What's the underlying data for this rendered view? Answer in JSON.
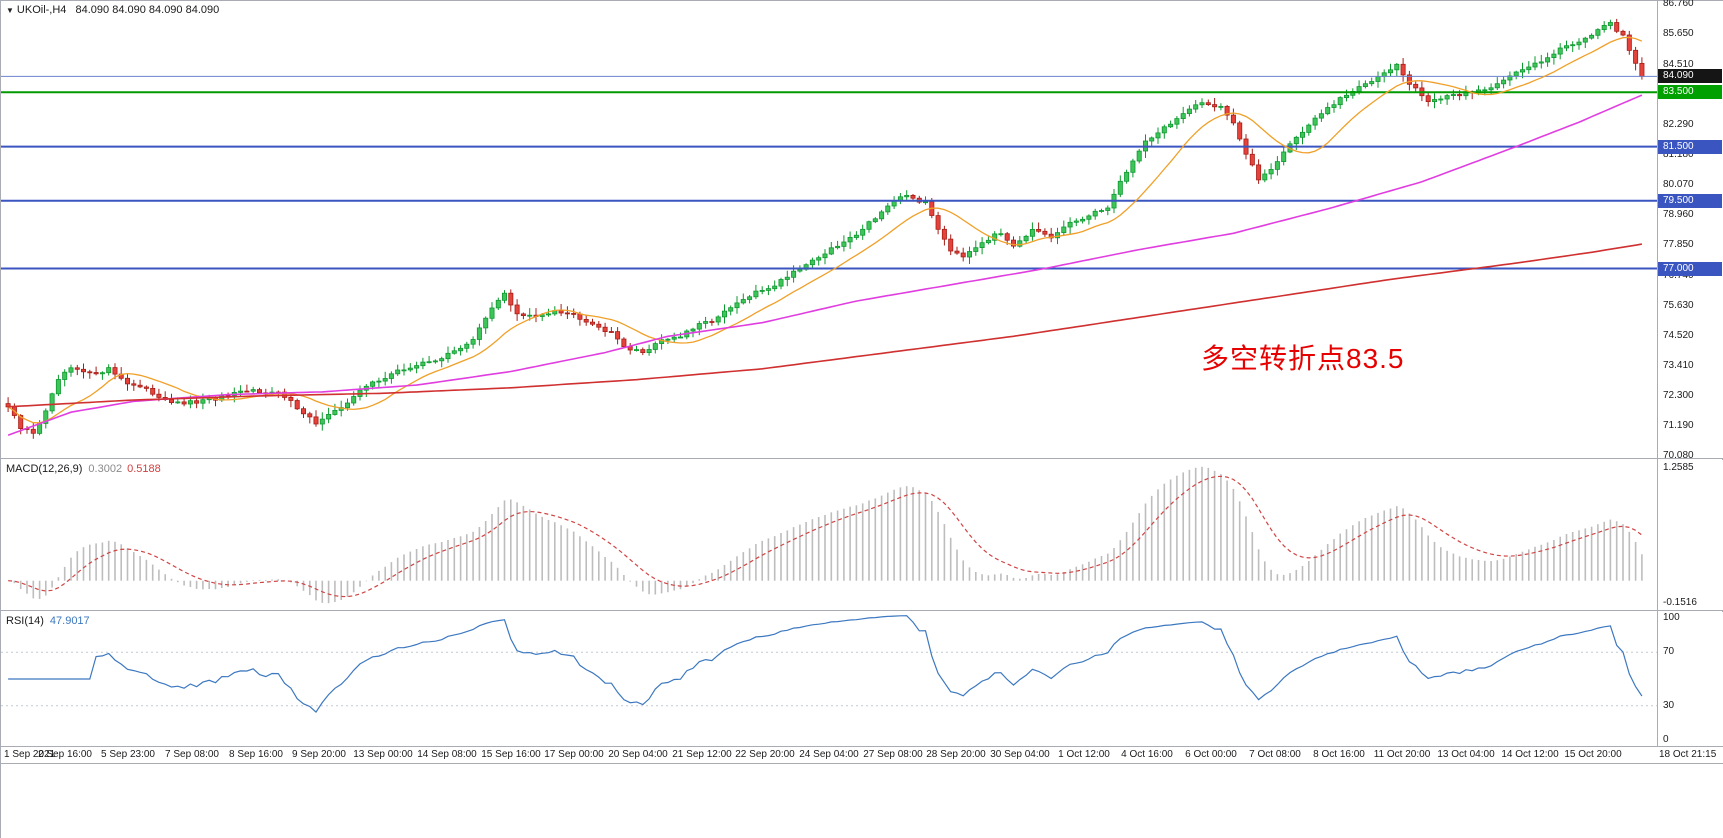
{
  "header": {
    "symbol": "UKOil-,H4",
    "ohlc": "84.090 84.090 84.090 84.090",
    "dropdown_icon": "▼"
  },
  "price_panel": {
    "axis_labels": [
      "86.760",
      "85.650",
      "84.510",
      "82.290",
      "81.180",
      "80.070",
      "78.960",
      "77.850",
      "76.740",
      "75.630",
      "74.520",
      "73.410",
      "72.300",
      "71.190",
      "70.080"
    ],
    "badges": [
      {
        "label": "84.090",
        "bg": "#151515",
        "fg": "#ffffff",
        "role": "bid-price"
      },
      {
        "label": "83.500",
        "bg": "#00a000",
        "fg": "#ffffff",
        "role": "key-level"
      },
      {
        "label": "81.500",
        "bg": "#3a55c0",
        "fg": "#ffffff",
        "role": "support"
      },
      {
        "label": "79.500",
        "bg": "#3a55c0",
        "fg": "#ffffff",
        "role": "support"
      },
      {
        "label": "77.000",
        "bg": "#3a55c0",
        "fg": "#ffffff",
        "role": "support"
      }
    ],
    "hlines": [
      {
        "price": 84.09,
        "color": "#6a83cf",
        "width": 1,
        "role": "bid-line"
      },
      {
        "price": 83.5,
        "color": "#009a00",
        "width": 2,
        "role": "key-level-83.5"
      },
      {
        "price": 81.5,
        "color": "#3a55c0",
        "width": 2,
        "role": "support-81.5"
      },
      {
        "price": 79.5,
        "color": "#3a55c0",
        "width": 2,
        "role": "support-79.5"
      },
      {
        "price": 77.0,
        "color": "#3a55c0",
        "width": 2,
        "role": "support-77.0"
      }
    ],
    "annotation": {
      "text": "多空转折点83.5",
      "color": "#e60000"
    },
    "scale": {
      "top": 86.87,
      "bottom": 70.01
    }
  },
  "indicators": {
    "macd": {
      "label": "MACD(12,26,9)",
      "value_main": "0.3002",
      "value_signal": "0.5188",
      "axis_top": "1.2585",
      "axis_bottom": "-0.1516",
      "histogram_color": "#bdbdbd",
      "signal_color": "#d04545"
    },
    "rsi": {
      "label": "RSI(14)",
      "value": "47.9017",
      "axis_labels": [
        "100",
        "70",
        "30",
        "0"
      ],
      "levels": [
        70,
        30
      ],
      "line_color": "#3c78c0",
      "level_color": "#c4cad2"
    }
  },
  "time_axis": {
    "labels": [
      "1 Sep 2021",
      "2 Sep 16:00",
      "5 Sep 23:00",
      "7 Sep 08:00",
      "8 Sep 16:00",
      "9 Sep 20:00",
      "13 Sep 00:00",
      "14 Sep 08:00",
      "15 Sep 16:00",
      "17 Sep 00:00",
      "20 Sep 04:00",
      "21 Sep 12:00",
      "22 Sep 20:00",
      "24 Sep 04:00",
      "27 Sep 08:00",
      "28 Sep 20:00",
      "30 Sep 04:00",
      "1 Oct 12:00",
      "4 Oct 16:00",
      "6 Oct 00:00",
      "7 Oct 08:00",
      "8 Oct 16:00",
      "11 Oct 20:00",
      "13 Oct 04:00",
      "14 Oct 12:00",
      "15 Oct 20:00",
      "18 Oct 21:15"
    ]
  },
  "chart_data": {
    "type": "candlestick",
    "symbol": "UKOil-",
    "timeframe": "H4",
    "title": "UKOil-,H4 84.090 84.090 84.090 84.090",
    "bars": 261,
    "ylim": [
      70.01,
      86.87
    ],
    "last_price": 84.09,
    "close_anchors": [
      [
        0,
        71.9
      ],
      [
        2,
        71.1
      ],
      [
        4,
        70.95
      ],
      [
        6,
        71.7
      ],
      [
        8,
        72.9
      ],
      [
        10,
        73.3
      ],
      [
        13,
        73.1
      ],
      [
        16,
        73.3
      ],
      [
        19,
        72.8
      ],
      [
        23,
        72.4
      ],
      [
        27,
        72.0
      ],
      [
        31,
        72.1
      ],
      [
        35,
        72.3
      ],
      [
        39,
        72.5
      ],
      [
        43,
        72.4
      ],
      [
        46,
        71.9
      ],
      [
        49,
        71.3
      ],
      [
        52,
        71.7
      ],
      [
        55,
        72.3
      ],
      [
        58,
        72.8
      ],
      [
        62,
        73.2
      ],
      [
        66,
        73.5
      ],
      [
        70,
        73.8
      ],
      [
        74,
        74.4
      ],
      [
        77,
        75.5
      ],
      [
        79,
        76.1
      ],
      [
        81,
        75.3
      ],
      [
        84,
        75.2
      ],
      [
        87,
        75.5
      ],
      [
        90,
        75.3
      ],
      [
        93,
        75.0
      ],
      [
        96,
        74.6
      ],
      [
        99,
        74.0
      ],
      [
        101,
        73.9
      ],
      [
        104,
        74.4
      ],
      [
        107,
        74.5
      ],
      [
        110,
        74.9
      ],
      [
        113,
        75.2
      ],
      [
        116,
        75.7
      ],
      [
        119,
        76.1
      ],
      [
        122,
        76.4
      ],
      [
        125,
        76.9
      ],
      [
        128,
        77.3
      ],
      [
        131,
        77.7
      ],
      [
        134,
        78.1
      ],
      [
        137,
        78.7
      ],
      [
        140,
        79.3
      ],
      [
        143,
        79.7
      ],
      [
        146,
        79.4
      ],
      [
        148,
        78.5
      ],
      [
        150,
        77.7
      ],
      [
        152,
        77.5
      ],
      [
        155,
        78.0
      ],
      [
        158,
        78.3
      ],
      [
        160,
        77.9
      ],
      [
        163,
        78.4
      ],
      [
        166,
        78.1
      ],
      [
        169,
        78.7
      ],
      [
        172,
        78.9
      ],
      [
        175,
        79.3
      ],
      [
        178,
        80.6
      ],
      [
        181,
        81.7
      ],
      [
        184,
        82.2
      ],
      [
        187,
        82.7
      ],
      [
        190,
        83.1
      ],
      [
        193,
        83.0
      ],
      [
        195,
        82.4
      ],
      [
        197,
        81.2
      ],
      [
        199,
        80.3
      ],
      [
        201,
        80.7
      ],
      [
        204,
        81.6
      ],
      [
        207,
        82.3
      ],
      [
        210,
        82.9
      ],
      [
        213,
        83.4
      ],
      [
        216,
        83.8
      ],
      [
        219,
        84.3
      ],
      [
        221,
        84.5
      ],
      [
        223,
        83.8
      ],
      [
        226,
        83.2
      ],
      [
        229,
        83.3
      ],
      [
        232,
        83.5
      ],
      [
        235,
        83.6
      ],
      [
        238,
        84.0
      ],
      [
        241,
        84.3
      ],
      [
        244,
        84.7
      ],
      [
        247,
        85.1
      ],
      [
        250,
        85.4
      ],
      [
        253,
        85.8
      ],
      [
        255,
        86.0
      ],
      [
        257,
        85.6
      ],
      [
        259,
        84.6
      ],
      [
        260,
        84.1
      ]
    ],
    "moving_averages": [
      {
        "name": "fast-ma",
        "color": "#f0a028",
        "period": 12,
        "source": "computed-sma-of-closes"
      },
      {
        "name": "mid-ma",
        "color": "#e03ee0",
        "anchors": [
          [
            0,
            70.85
          ],
          [
            10,
            71.7
          ],
          [
            20,
            72.1
          ],
          [
            35,
            72.35
          ],
          [
            50,
            72.45
          ],
          [
            65,
            72.7
          ],
          [
            80,
            73.2
          ],
          [
            95,
            73.9
          ],
          [
            105,
            74.5
          ],
          [
            120,
            75.0
          ],
          [
            135,
            75.8
          ],
          [
            150,
            76.4
          ],
          [
            165,
            77.0
          ],
          [
            180,
            77.7
          ],
          [
            195,
            78.3
          ],
          [
            210,
            79.2
          ],
          [
            225,
            80.2
          ],
          [
            240,
            81.5
          ],
          [
            250,
            82.4
          ],
          [
            260,
            83.4
          ]
        ]
      },
      {
        "name": "slow-ma",
        "color": "#d03030",
        "anchors": [
          [
            0,
            71.9
          ],
          [
            20,
            72.15
          ],
          [
            40,
            72.3
          ],
          [
            60,
            72.4
          ],
          [
            80,
            72.6
          ],
          [
            100,
            72.9
          ],
          [
            120,
            73.3
          ],
          [
            140,
            73.9
          ],
          [
            160,
            74.5
          ],
          [
            180,
            75.2
          ],
          [
            200,
            75.9
          ],
          [
            220,
            76.6
          ],
          [
            240,
            77.2
          ],
          [
            252,
            77.6
          ],
          [
            260,
            77.9
          ]
        ]
      }
    ],
    "candle_colors": {
      "up_fill": "#3fc45a",
      "up_border": "#0b9a2e",
      "down_fill": "#e5423c",
      "down_border": "#a81d17"
    },
    "sub_charts": [
      {
        "type": "bar",
        "name": "MACD(12,26,9)",
        "current": [
          0.3002,
          0.5188
        ],
        "range": [
          -0.1516,
          1.2585
        ],
        "derived_from": "close_anchors"
      },
      {
        "type": "line",
        "name": "RSI(14)",
        "current": 47.9017,
        "range": [
          0,
          100
        ],
        "levels": [
          30,
          70
        ],
        "derived_from": "close_anchors"
      }
    ]
  }
}
